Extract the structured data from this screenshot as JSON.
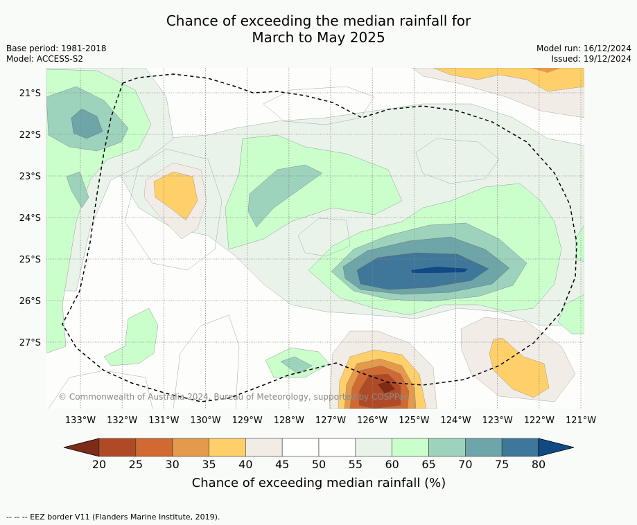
{
  "title_line1": "Chance of exceeding the median rainfall for",
  "title_line2": "March to May 2025",
  "base_period": "Base period: 1981-2018",
  "model": "Model: ACCESS-S2",
  "model_run": "Model run: 16/12/2024",
  "issued": "Issued: 19/12/2024",
  "lat_labels": [
    "21°S",
    "22°S",
    "23°S",
    "24°S",
    "25°S",
    "26°S",
    "27°S"
  ],
  "lon_labels": [
    "133°W",
    "132°W",
    "131°W",
    "130°W",
    "129°W",
    "128°W",
    "127°W",
    "126°W",
    "125°W",
    "124°W",
    "123°W",
    "122°W",
    "121°W"
  ],
  "copyright": "© Commonwealth of Australia 2024, Bureau of Meteorology, supported by COSPPac",
  "colorbar": {
    "ticks": [
      "20",
      "25",
      "30",
      "35",
      "40",
      "45",
      "50",
      "55",
      "60",
      "65",
      "70",
      "75",
      "80"
    ],
    "colors": [
      "#7d2c18",
      "#b04a26",
      "#d06a32",
      "#e49a4a",
      "#ffd06a",
      "#f2ece6",
      "#ffffff",
      "#ffffff",
      "#eaf3ea",
      "#caffcc",
      "#9dd3bd",
      "#6da5a8",
      "#3e7799",
      "#104a85"
    ],
    "title": "Chance of exceeding median rainfall (%)"
  },
  "footer": "--  --  -- EEZ border V11 (Flanders Marine Institute, 2019)."
}
